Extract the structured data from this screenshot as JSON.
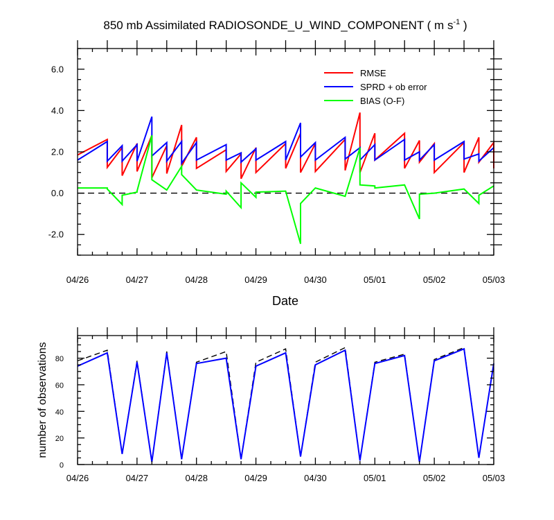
{
  "figure": {
    "title": "850 mb Assimilated RADIOSONDE_U_WIND_COMPONENT ( m s",
    "title_exp": "-1",
    "title_close": " )"
  },
  "chart_data": [
    {
      "type": "line",
      "title": "850 mb Assimilated RADIOSONDE_U_WIND_COMPONENT ( m s-1 )",
      "xlabel": "Date",
      "ylabel": "",
      "xlim": [
        0,
        14
      ],
      "ylim": [
        -3,
        7
      ],
      "x_tick_values": [
        0,
        2,
        4,
        6,
        8,
        10,
        12,
        14
      ],
      "x_tick_labels": [
        "04/26",
        "04/27",
        "04/28",
        "04/29",
        "04/30",
        "05/01",
        "05/02",
        "05/03"
      ],
      "y_ticks": [
        -2,
        0,
        2,
        4,
        6
      ],
      "y_tick_labels": [
        "-2.0",
        "0.0",
        "2.0",
        "4.0",
        "6.0"
      ],
      "legend_position": "top-right",
      "zero_line": true,
      "series": [
        {
          "name": "RMSE",
          "color": "#ff0000",
          "points": [
            [
              0,
              1.85
            ],
            [
              1,
              2.6
            ],
            [
              1,
              1.25
            ],
            [
              1.5,
              2.2
            ],
            [
              1.5,
              0.85
            ],
            [
              2,
              2.4
            ],
            [
              2,
              1.05
            ],
            [
              2.5,
              2.8
            ],
            [
              2.5,
              0.75
            ],
            [
              3,
              2.3
            ],
            [
              3,
              0.95
            ],
            [
              3.5,
              3.3
            ],
            [
              3.5,
              1.3
            ],
            [
              4,
              2.7
            ],
            [
              4,
              1.2
            ],
            [
              5,
              2.1
            ],
            [
              5,
              1.05
            ],
            [
              5.5,
              1.9
            ],
            [
              5.5,
              0.7
            ],
            [
              6,
              2.2
            ],
            [
              6,
              1.0
            ],
            [
              7,
              2.4
            ],
            [
              7,
              1.2
            ],
            [
              7.5,
              2.9
            ],
            [
              7.5,
              1.0
            ],
            [
              8,
              2.4
            ],
            [
              8,
              1.05
            ],
            [
              9,
              2.6
            ],
            [
              9,
              1.1
            ],
            [
              9.5,
              3.9
            ],
            [
              9.5,
              1.0
            ],
            [
              10,
              2.9
            ],
            [
              10,
              1.6
            ],
            [
              11,
              2.9
            ],
            [
              11,
              1.2
            ],
            [
              11.5,
              2.55
            ],
            [
              11.5,
              1.5
            ],
            [
              12,
              2.4
            ],
            [
              12,
              1.0
            ],
            [
              13,
              2.45
            ],
            [
              13,
              1.0
            ],
            [
              13.5,
              2.7
            ],
            [
              13.5,
              1.5
            ],
            [
              14,
              2.45
            ],
            [
              14,
              1.2
            ]
          ]
        },
        {
          "name": "SPRD + ob error",
          "color": "#0000ff",
          "points": [
            [
              0,
              1.6
            ],
            [
              1,
              2.5
            ],
            [
              1,
              1.55
            ],
            [
              1.5,
              2.3
            ],
            [
              1.5,
              1.55
            ],
            [
              2,
              2.35
            ],
            [
              2,
              1.55
            ],
            [
              2.5,
              3.7
            ],
            [
              2.5,
              1.8
            ],
            [
              3,
              2.45
            ],
            [
              3,
              1.55
            ],
            [
              3.5,
              2.5
            ],
            [
              3.5,
              1.45
            ],
            [
              4,
              2.45
            ],
            [
              4,
              1.6
            ],
            [
              5,
              2.35
            ],
            [
              5,
              1.6
            ],
            [
              5.5,
              1.95
            ],
            [
              5.5,
              1.5
            ],
            [
              6,
              2.15
            ],
            [
              6,
              1.6
            ],
            [
              7,
              2.5
            ],
            [
              7,
              1.6
            ],
            [
              7.5,
              3.4
            ],
            [
              7.5,
              1.75
            ],
            [
              8,
              2.45
            ],
            [
              8,
              1.6
            ],
            [
              9,
              2.7
            ],
            [
              9,
              1.65
            ],
            [
              9.5,
              2.2
            ],
            [
              9.5,
              1.6
            ],
            [
              10,
              2.35
            ],
            [
              10,
              1.6
            ],
            [
              11,
              2.6
            ],
            [
              11,
              1.6
            ],
            [
              11.5,
              2.0
            ],
            [
              11.5,
              1.6
            ],
            [
              12,
              2.35
            ],
            [
              12,
              1.6
            ],
            [
              13,
              2.5
            ],
            [
              13,
              1.65
            ],
            [
              13.5,
              1.9
            ],
            [
              13.5,
              1.55
            ],
            [
              14,
              2.2
            ]
          ]
        },
        {
          "name": "BIAS (O-F)",
          "color": "#00ff00",
          "points": [
            [
              0,
              0.25
            ],
            [
              1,
              0.25
            ],
            [
              1,
              0.2
            ],
            [
              1.5,
              -0.55
            ],
            [
              1.5,
              -0.1
            ],
            [
              2,
              0.05
            ],
            [
              2,
              0.1
            ],
            [
              2.5,
              2.8
            ],
            [
              2.5,
              0.65
            ],
            [
              3,
              0.15
            ],
            [
              3.5,
              1.3
            ],
            [
              3.5,
              0.9
            ],
            [
              4,
              0.15
            ],
            [
              5,
              -0.05
            ],
            [
              5,
              0.1
            ],
            [
              5.5,
              -0.7
            ],
            [
              5.5,
              0.5
            ],
            [
              6,
              -0.2
            ],
            [
              6,
              0.05
            ],
            [
              7,
              0.1
            ],
            [
              7.5,
              -2.45
            ],
            [
              7.5,
              -0.5
            ],
            [
              8,
              0.25
            ],
            [
              9,
              -0.15
            ],
            [
              9.5,
              2.2
            ],
            [
              9.5,
              0.4
            ],
            [
              10,
              0.35
            ],
            [
              10,
              0.25
            ],
            [
              11,
              0.4
            ],
            [
              11.5,
              -1.25
            ],
            [
              11.5,
              -0.05
            ],
            [
              12,
              0.0
            ],
            [
              13,
              0.2
            ],
            [
              13.5,
              -0.5
            ],
            [
              13.5,
              -0.1
            ],
            [
              14,
              0.35
            ]
          ]
        }
      ]
    },
    {
      "type": "line",
      "title": "",
      "xlabel": "",
      "ylabel": "number of observations",
      "xlim": [
        0,
        14
      ],
      "ylim": [
        0,
        97
      ],
      "x_tick_values": [
        0,
        2,
        4,
        6,
        8,
        10,
        12,
        14
      ],
      "x_tick_labels": [
        "04/26",
        "04/27",
        "04/28",
        "04/29",
        "04/30",
        "05/01",
        "05/02",
        "05/03"
      ],
      "y_ticks": [
        0,
        20,
        40,
        60,
        80
      ],
      "y_tick_labels": [
        "0",
        "20",
        "40",
        "60",
        "80"
      ],
      "series": [
        {
          "color": "#000000",
          "dash": true,
          "points": [
            [
              0,
              78
            ],
            [
              1,
              86
            ],
            [
              1.5,
              8
            ],
            [
              2,
              78
            ],
            [
              2.5,
              2
            ],
            [
              3,
              85
            ],
            [
              3.5,
              4
            ],
            [
              4,
              77
            ],
            [
              5,
              85
            ],
            [
              5.5,
              4
            ],
            [
              6,
              77
            ],
            [
              7,
              87
            ],
            [
              7.5,
              6
            ],
            [
              8,
              77
            ],
            [
              9,
              88
            ],
            [
              9.5,
              3
            ],
            [
              10,
              77
            ],
            [
              11,
              83
            ],
            [
              11.5,
              2
            ],
            [
              12,
              79
            ],
            [
              13,
              88
            ],
            [
              13.5,
              5
            ],
            [
              14,
              76
            ]
          ]
        },
        {
          "color": "#0000ff",
          "dash": false,
          "points": [
            [
              0,
              74
            ],
            [
              1,
              84
            ],
            [
              1.5,
              8
            ],
            [
              2,
              77
            ],
            [
              2.5,
              2
            ],
            [
              3,
              84
            ],
            [
              3.5,
              4
            ],
            [
              4,
              76
            ],
            [
              5,
              80
            ],
            [
              5.5,
              4
            ],
            [
              6,
              74
            ],
            [
              7,
              84
            ],
            [
              7.5,
              6
            ],
            [
              8,
              75
            ],
            [
              9,
              86
            ],
            [
              9.5,
              3
            ],
            [
              10,
              76
            ],
            [
              11,
              82
            ],
            [
              11.5,
              2
            ],
            [
              12,
              78
            ],
            [
              13,
              87
            ],
            [
              13.5,
              5
            ],
            [
              14,
              76
            ]
          ]
        }
      ]
    }
  ]
}
